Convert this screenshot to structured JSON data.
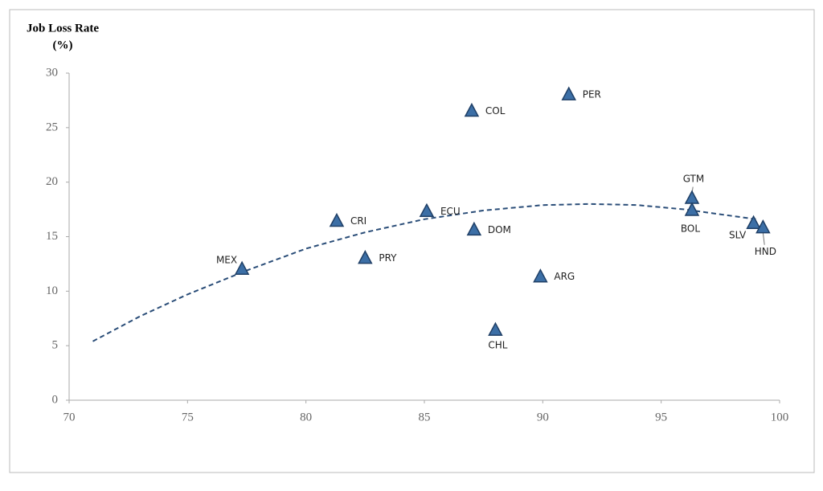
{
  "chart_data": {
    "type": "scatter",
    "ylabel": "Job Loss Rate",
    "ylabel_unit": "(%)",
    "points": {
      "labels": [
        "MEX",
        "CRI",
        "PRY",
        "ECU",
        "COL",
        "DOM",
        "CHL",
        "ARG",
        "PER",
        "GTM",
        "BOL",
        "SLV",
        "HND"
      ],
      "x": [
        77.3,
        81.3,
        82.5,
        85.1,
        87.0,
        87.1,
        88.0,
        89.9,
        91.1,
        96.3,
        96.3,
        98.9,
        99.3
      ],
      "values": [
        12.0,
        16.4,
        13.0,
        17.3,
        26.5,
        15.6,
        6.4,
        11.3,
        28.0,
        18.5,
        17.4,
        16.2,
        15.8
      ],
      "color": "#3c6fa6"
    },
    "trend": {
      "x": [
        71,
        73,
        75,
        77.5,
        80,
        82.5,
        85,
        87.5,
        90,
        92,
        94,
        96,
        99
      ],
      "values": [
        5.4,
        7.7,
        9.7,
        11.9,
        13.9,
        15.4,
        16.6,
        17.4,
        17.9,
        18.0,
        17.9,
        17.5,
        16.6
      ],
      "color": "#2a4d78",
      "dashed": true
    },
    "xlim": [
      70,
      100
    ],
    "xticks": [
      70,
      75,
      80,
      85,
      90,
      95,
      100
    ],
    "ylim": [
      0,
      30
    ],
    "yticks": [
      0,
      5,
      10,
      15,
      20,
      25,
      30
    ]
  }
}
